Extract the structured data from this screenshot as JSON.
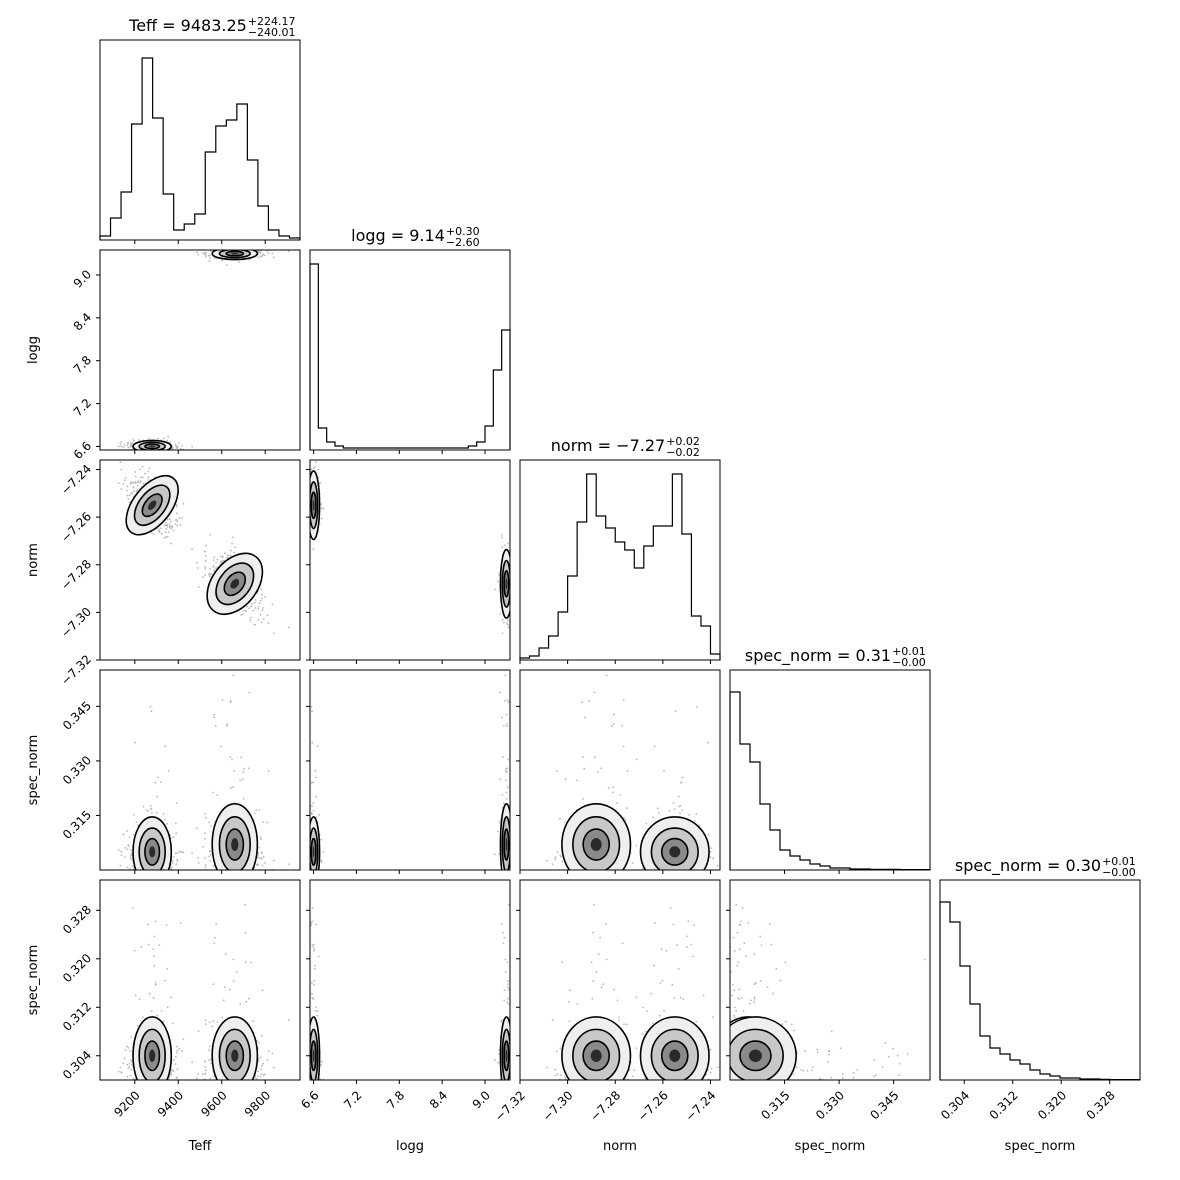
{
  "chart_data": {
    "type": "corner",
    "parameters": [
      "Teff",
      "logg",
      "norm",
      "spec_norm",
      "spec_norm"
    ],
    "diagonal_titles": [
      {
        "label": "Teff",
        "value": "9483.25",
        "plus": "+224.17",
        "minus": "−240.01"
      },
      {
        "label": "logg",
        "value": "9.14",
        "plus": "+0.30",
        "minus": "−2.60"
      },
      {
        "label": "norm",
        "value": "−7.27",
        "plus": "+0.02",
        "minus": "−0.02"
      },
      {
        "label": "spec_norm",
        "value": "0.31",
        "plus": "+0.01",
        "minus": "−0.00"
      },
      {
        "label": "spec_norm",
        "value": "0.30",
        "plus": "+0.01",
        "minus": "−0.00"
      }
    ],
    "axes": [
      {
        "label": "Teff",
        "range": [
          9040,
          9960
        ],
        "ticks": [
          9200,
          9400,
          9600,
          9800
        ],
        "tick_labels": [
          "9200",
          "9400",
          "9600",
          "9800"
        ]
      },
      {
        "label": "logg",
        "range": [
          6.55,
          9.35
        ],
        "ticks": [
          6.6,
          7.2,
          7.8,
          8.4,
          9.0
        ],
        "tick_labels": [
          "6.6",
          "7.2",
          "7.8",
          "8.4",
          "9.0"
        ]
      },
      {
        "label": "norm",
        "range": [
          -7.32,
          -7.236
        ],
        "ticks": [
          -7.32,
          -7.3,
          -7.28,
          -7.26,
          -7.24
        ],
        "tick_labels": [
          "−7.32",
          "−7.30",
          "−7.28",
          "−7.26",
          "−7.24"
        ]
      },
      {
        "label": "spec_norm",
        "range": [
          0.3,
          0.355
        ],
        "ticks": [
          0.315,
          0.33,
          0.345
        ],
        "tick_labels": [
          "0.315",
          "0.330",
          "0.345"
        ]
      },
      {
        "label": "spec_norm",
        "range": [
          0.3,
          0.333
        ],
        "ticks": [
          0.304,
          0.312,
          0.32,
          0.328
        ],
        "tick_labels": [
          "0.304",
          "0.312",
          "0.320",
          "0.328"
        ]
      }
    ],
    "histograms": [
      {
        "counts": [
          0.02,
          0.11,
          0.24,
          0.58,
          0.91,
          0.61,
          0.23,
          0.05,
          0.08,
          0.13,
          0.44,
          0.57,
          0.6,
          0.68,
          0.4,
          0.17,
          0.05,
          0.02,
          0.01
        ]
      },
      {
        "counts": [
          0.93,
          0.11,
          0.04,
          0.02,
          0.01,
          0.01,
          0.01,
          0.01,
          0.01,
          0.01,
          0.01,
          0.01,
          0.01,
          0.01,
          0.01,
          0.01,
          0.01,
          0.01,
          0.01,
          0.02,
          0.04,
          0.12,
          0.4,
          0.6
        ]
      },
      {
        "counts": [
          0.01,
          0.02,
          0.06,
          0.12,
          0.24,
          0.42,
          0.69,
          0.93,
          0.72,
          0.66,
          0.59,
          0.55,
          0.46,
          0.57,
          0.67,
          0.67,
          0.93,
          0.63,
          0.22,
          0.17,
          0.03
        ]
      },
      {
        "counts": [
          0.89,
          0.63,
          0.54,
          0.33,
          0.2,
          0.1,
          0.07,
          0.05,
          0.03,
          0.02,
          0.01,
          0.01,
          0.005,
          0.005,
          0.003,
          0.003,
          0.003,
          0.002,
          0.002,
          0.002
        ]
      },
      {
        "counts": [
          0.89,
          0.79,
          0.57,
          0.38,
          0.22,
          0.16,
          0.13,
          0.1,
          0.08,
          0.05,
          0.03,
          0.02,
          0.01,
          0.01,
          0.005,
          0.005,
          0.003,
          0.002,
          0.002,
          0.002
        ]
      }
    ]
  }
}
